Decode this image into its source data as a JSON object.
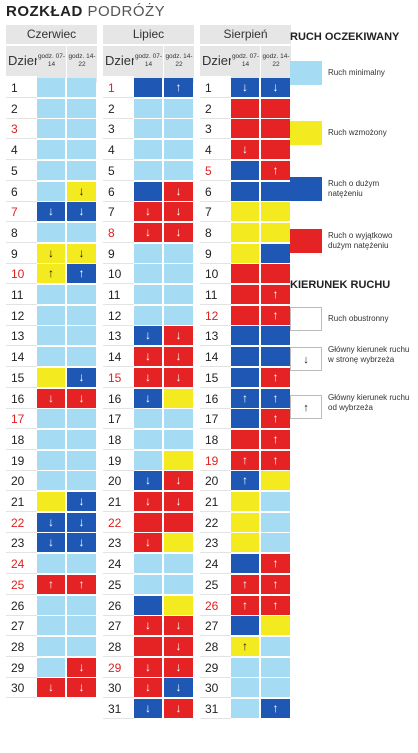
{
  "title": {
    "bold": "ROZKŁAD",
    "normal": " PODRÓŻY"
  },
  "headers": {
    "day": "Dzień",
    "slot1": "godz. 07-14",
    "slot2": "godz. 14-22"
  },
  "legend": {
    "heading1": "RUCH OCZEKIWANY",
    "items": [
      {
        "label": "Ruch minimalny",
        "level": "min"
      },
      {
        "label": "Ruch wzmożony",
        "level": "wzm"
      },
      {
        "label": "Ruch o dużym natężeniu",
        "level": "duz"
      },
      {
        "label": "Ruch o wyjątkowo dużym natężeniu",
        "level": "wyj"
      }
    ],
    "heading2": "KIERUNEK RUCHU",
    "dir_items": [
      {
        "label": "Ruch obustronny",
        "arrow": ""
      },
      {
        "label": "Główny kierunek ruchu w stronę wybrzeża",
        "arrow": "↓"
      },
      {
        "label": "Główny kierunek ruchu od wybrzeża",
        "arrow": "↑"
      }
    ]
  },
  "colors": {
    "min": "#a6dcf3",
    "wzm": "#f4ea20",
    "duz": "#1f58b4",
    "wyj": "#e52224",
    "holiday_text": "#e02020"
  },
  "arrows": {
    "down": "↓",
    "up": "↑"
  },
  "months": [
    {
      "name": "Czerwiec",
      "days": [
        {
          "d": "1",
          "h": false,
          "a": "min",
          "b": "min",
          "da": "",
          "db": ""
        },
        {
          "d": "2",
          "h": false,
          "a": "min",
          "b": "min",
          "da": "",
          "db": ""
        },
        {
          "d": "3",
          "h": true,
          "a": "min",
          "b": "min",
          "da": "",
          "db": ""
        },
        {
          "d": "4",
          "h": false,
          "a": "min",
          "b": "min",
          "da": "",
          "db": ""
        },
        {
          "d": "5",
          "h": false,
          "a": "min",
          "b": "min",
          "da": "",
          "db": ""
        },
        {
          "d": "6",
          "h": false,
          "a": "min",
          "b": "wzm",
          "da": "",
          "db": "down"
        },
        {
          "d": "7",
          "h": true,
          "a": "duz",
          "b": "duz",
          "da": "down",
          "db": "down"
        },
        {
          "d": "8",
          "h": false,
          "a": "min",
          "b": "min",
          "da": "",
          "db": ""
        },
        {
          "d": "9",
          "h": false,
          "a": "wzm",
          "b": "wzm",
          "da": "down",
          "db": "down"
        },
        {
          "d": "10",
          "h": true,
          "a": "wzm",
          "b": "duz",
          "da": "up",
          "db": "up"
        },
        {
          "d": "11",
          "h": false,
          "a": "min",
          "b": "min",
          "da": "",
          "db": ""
        },
        {
          "d": "12",
          "h": false,
          "a": "min",
          "b": "min",
          "da": "",
          "db": ""
        },
        {
          "d": "13",
          "h": false,
          "a": "min",
          "b": "min",
          "da": "",
          "db": ""
        },
        {
          "d": "14",
          "h": false,
          "a": "min",
          "b": "min",
          "da": "",
          "db": ""
        },
        {
          "d": "15",
          "h": false,
          "a": "wzm",
          "b": "duz",
          "da": "",
          "db": "down"
        },
        {
          "d": "16",
          "h": false,
          "a": "wyj",
          "b": "wyj",
          "da": "down",
          "db": "down"
        },
        {
          "d": "17",
          "h": true,
          "a": "min",
          "b": "min",
          "da": "",
          "db": ""
        },
        {
          "d": "18",
          "h": false,
          "a": "min",
          "b": "min",
          "da": "",
          "db": ""
        },
        {
          "d": "19",
          "h": false,
          "a": "min",
          "b": "min",
          "da": "",
          "db": ""
        },
        {
          "d": "20",
          "h": false,
          "a": "min",
          "b": "min",
          "da": "",
          "db": ""
        },
        {
          "d": "21",
          "h": false,
          "a": "wzm",
          "b": "duz",
          "da": "",
          "db": "down"
        },
        {
          "d": "22",
          "h": true,
          "a": "duz",
          "b": "duz",
          "da": "down",
          "db": "down"
        },
        {
          "d": "23",
          "h": false,
          "a": "duz",
          "b": "duz",
          "da": "down",
          "db": "down"
        },
        {
          "d": "24",
          "h": true,
          "a": "min",
          "b": "min",
          "da": "",
          "db": ""
        },
        {
          "d": "25",
          "h": true,
          "a": "wyj",
          "b": "wyj",
          "da": "up",
          "db": "up"
        },
        {
          "d": "26",
          "h": false,
          "a": "min",
          "b": "min",
          "da": "",
          "db": ""
        },
        {
          "d": "27",
          "h": false,
          "a": "min",
          "b": "min",
          "da": "",
          "db": ""
        },
        {
          "d": "28",
          "h": false,
          "a": "min",
          "b": "min",
          "da": "",
          "db": ""
        },
        {
          "d": "29",
          "h": false,
          "a": "min",
          "b": "wyj",
          "da": "",
          "db": "down"
        },
        {
          "d": "30",
          "h": false,
          "a": "wyj",
          "b": "wyj",
          "da": "down",
          "db": "down"
        }
      ]
    },
    {
      "name": "Lipiec",
      "days": [
        {
          "d": "1",
          "h": true,
          "a": "duz",
          "b": "duz",
          "da": "",
          "db": "up"
        },
        {
          "d": "2",
          "h": false,
          "a": "min",
          "b": "min",
          "da": "",
          "db": ""
        },
        {
          "d": "3",
          "h": false,
          "a": "min",
          "b": "min",
          "da": "",
          "db": ""
        },
        {
          "d": "4",
          "h": false,
          "a": "min",
          "b": "min",
          "da": "",
          "db": ""
        },
        {
          "d": "5",
          "h": false,
          "a": "min",
          "b": "min",
          "da": "",
          "db": ""
        },
        {
          "d": "6",
          "h": false,
          "a": "duz",
          "b": "wyj",
          "da": "",
          "db": "down"
        },
        {
          "d": "7",
          "h": false,
          "a": "wyj",
          "b": "wyj",
          "da": "down",
          "db": "down"
        },
        {
          "d": "8",
          "h": true,
          "a": "wyj",
          "b": "wyj",
          "da": "down",
          "db": "down"
        },
        {
          "d": "9",
          "h": false,
          "a": "min",
          "b": "min",
          "da": "",
          "db": ""
        },
        {
          "d": "10",
          "h": false,
          "a": "min",
          "b": "min",
          "da": "",
          "db": ""
        },
        {
          "d": "11",
          "h": false,
          "a": "min",
          "b": "min",
          "da": "",
          "db": ""
        },
        {
          "d": "12",
          "h": false,
          "a": "min",
          "b": "min",
          "da": "",
          "db": ""
        },
        {
          "d": "13",
          "h": false,
          "a": "duz",
          "b": "wyj",
          "da": "down",
          "db": "down"
        },
        {
          "d": "14",
          "h": false,
          "a": "wyj",
          "b": "wyj",
          "da": "down",
          "db": "down"
        },
        {
          "d": "15",
          "h": true,
          "a": "wyj",
          "b": "wyj",
          "da": "down",
          "db": "down"
        },
        {
          "d": "16",
          "h": false,
          "a": "duz",
          "b": "wzm",
          "da": "down",
          "db": ""
        },
        {
          "d": "17",
          "h": false,
          "a": "min",
          "b": "min",
          "da": "",
          "db": ""
        },
        {
          "d": "18",
          "h": false,
          "a": "min",
          "b": "min",
          "da": "",
          "db": ""
        },
        {
          "d": "19",
          "h": false,
          "a": "min",
          "b": "wzm",
          "da": "",
          "db": ""
        },
        {
          "d": "20",
          "h": false,
          "a": "duz",
          "b": "wyj",
          "da": "down",
          "db": "down"
        },
        {
          "d": "21",
          "h": false,
          "a": "wyj",
          "b": "wyj",
          "da": "down",
          "db": "down"
        },
        {
          "d": "22",
          "h": true,
          "a": "wyj",
          "b": "wyj",
          "da": "",
          "db": ""
        },
        {
          "d": "23",
          "h": false,
          "a": "wyj",
          "b": "wzm",
          "da": "down",
          "db": ""
        },
        {
          "d": "24",
          "h": false,
          "a": "min",
          "b": "min",
          "da": "",
          "db": ""
        },
        {
          "d": "25",
          "h": false,
          "a": "min",
          "b": "min",
          "da": "",
          "db": ""
        },
        {
          "d": "26",
          "h": false,
          "a": "duz",
          "b": "wzm",
          "da": "",
          "db": ""
        },
        {
          "d": "27",
          "h": false,
          "a": "wyj",
          "b": "wyj",
          "da": "down",
          "db": "down"
        },
        {
          "d": "28",
          "h": false,
          "a": "wyj",
          "b": "wyj",
          "da": "",
          "db": "down"
        },
        {
          "d": "29",
          "h": true,
          "a": "wyj",
          "b": "wyj",
          "da": "down",
          "db": "down"
        },
        {
          "d": "30",
          "h": false,
          "a": "wyj",
          "b": "duz",
          "da": "down",
          "db": "down"
        },
        {
          "d": "31",
          "h": false,
          "a": "duz",
          "b": "wyj",
          "da": "down",
          "db": "down"
        }
      ]
    },
    {
      "name": "Sierpień",
      "days": [
        {
          "d": "1",
          "h": false,
          "a": "duz",
          "b": "duz",
          "da": "down",
          "db": "down"
        },
        {
          "d": "2",
          "h": false,
          "a": "wyj",
          "b": "wyj",
          "da": "",
          "db": ""
        },
        {
          "d": "3",
          "h": false,
          "a": "wyj",
          "b": "wyj",
          "da": "",
          "db": ""
        },
        {
          "d": "4",
          "h": false,
          "a": "wyj",
          "b": "wyj",
          "da": "down",
          "db": ""
        },
        {
          "d": "5",
          "h": true,
          "a": "duz",
          "b": "wyj",
          "da": "",
          "db": "up"
        },
        {
          "d": "6",
          "h": false,
          "a": "duz",
          "b": "duz",
          "da": "",
          "db": ""
        },
        {
          "d": "7",
          "h": false,
          "a": "wzm",
          "b": "wzm",
          "da": "",
          "db": ""
        },
        {
          "d": "8",
          "h": false,
          "a": "wzm",
          "b": "wzm",
          "da": "",
          "db": ""
        },
        {
          "d": "9",
          "h": false,
          "a": "wzm",
          "b": "duz",
          "da": "",
          "db": ""
        },
        {
          "d": "10",
          "h": false,
          "a": "wyj",
          "b": "wyj",
          "da": "",
          "db": ""
        },
        {
          "d": "11",
          "h": false,
          "a": "wyj",
          "b": "wyj",
          "da": "",
          "db": "up"
        },
        {
          "d": "12",
          "h": true,
          "a": "wyj",
          "b": "wyj",
          "da": "",
          "db": "up"
        },
        {
          "d": "13",
          "h": false,
          "a": "duz",
          "b": "duz",
          "da": "",
          "db": ""
        },
        {
          "d": "14",
          "h": false,
          "a": "duz",
          "b": "duz",
          "da": "",
          "db": ""
        },
        {
          "d": "15",
          "h": false,
          "a": "duz",
          "b": "wyj",
          "da": "",
          "db": "up"
        },
        {
          "d": "16",
          "h": false,
          "a": "duz",
          "b": "duz",
          "da": "up",
          "db": "up"
        },
        {
          "d": "17",
          "h": false,
          "a": "duz",
          "b": "wyj",
          "da": "",
          "db": "up"
        },
        {
          "d": "18",
          "h": false,
          "a": "wyj",
          "b": "wyj",
          "da": "",
          "db": "up"
        },
        {
          "d": "19",
          "h": true,
          "a": "wyj",
          "b": "wyj",
          "da": "up",
          "db": "up"
        },
        {
          "d": "20",
          "h": false,
          "a": "duz",
          "b": "wzm",
          "da": "up",
          "db": ""
        },
        {
          "d": "21",
          "h": false,
          "a": "wzm",
          "b": "min",
          "da": "",
          "db": ""
        },
        {
          "d": "22",
          "h": false,
          "a": "wzm",
          "b": "min",
          "da": "",
          "db": ""
        },
        {
          "d": "23",
          "h": false,
          "a": "wzm",
          "b": "min",
          "da": "",
          "db": ""
        },
        {
          "d": "24",
          "h": false,
          "a": "duz",
          "b": "wyj",
          "da": "",
          "db": "up"
        },
        {
          "d": "25",
          "h": false,
          "a": "wyj",
          "b": "wyj",
          "da": "up",
          "db": "up"
        },
        {
          "d": "26",
          "h": true,
          "a": "wyj",
          "b": "wyj",
          "da": "up",
          "db": "up"
        },
        {
          "d": "27",
          "h": false,
          "a": "duz",
          "b": "wzm",
          "da": "",
          "db": ""
        },
        {
          "d": "28",
          "h": false,
          "a": "wzm",
          "b": "min",
          "da": "up",
          "db": ""
        },
        {
          "d": "29",
          "h": false,
          "a": "min",
          "b": "min",
          "da": "",
          "db": ""
        },
        {
          "d": "30",
          "h": false,
          "a": "min",
          "b": "min",
          "da": "",
          "db": ""
        },
        {
          "d": "31",
          "h": false,
          "a": "min",
          "b": "duz",
          "da": "",
          "db": "up"
        }
      ]
    }
  ]
}
